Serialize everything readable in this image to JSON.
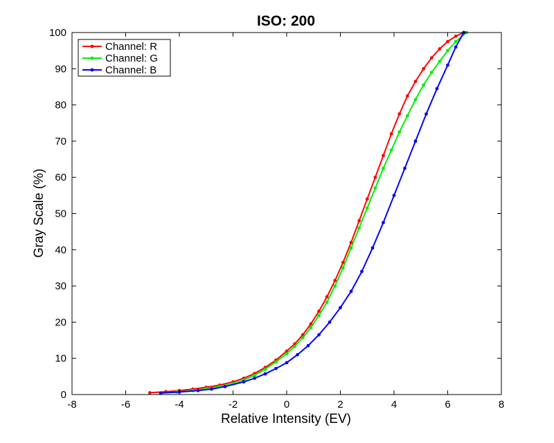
{
  "chart_data": {
    "type": "line",
    "title": "ISO: 200",
    "xlabel": "Relative Intensity (EV)",
    "ylabel": "Gray Scale (%)",
    "xlim": [
      -8,
      8
    ],
    "ylim": [
      0,
      100
    ],
    "xticks": [
      -8,
      -6,
      -4,
      -2,
      0,
      2,
      4,
      6,
      8
    ],
    "yticks": [
      0,
      10,
      20,
      30,
      40,
      50,
      60,
      70,
      80,
      90,
      100
    ],
    "grid": false,
    "legend_position": "top-left",
    "series": [
      {
        "name": "Channel: R",
        "color": "#ff0000",
        "points": [
          [
            -5.1,
            0.5
          ],
          [
            -4.5,
            0.8
          ],
          [
            -4.0,
            1.1
          ],
          [
            -3.5,
            1.5
          ],
          [
            -3.0,
            2.0
          ],
          [
            -2.5,
            2.6
          ],
          [
            -2.0,
            3.5
          ],
          [
            -1.6,
            4.5
          ],
          [
            -1.2,
            5.8
          ],
          [
            -0.8,
            7.5
          ],
          [
            -0.4,
            9.5
          ],
          [
            0.0,
            12.0
          ],
          [
            0.3,
            14.0
          ],
          [
            0.6,
            16.5
          ],
          [
            0.9,
            19.5
          ],
          [
            1.2,
            23.0
          ],
          [
            1.5,
            27.0
          ],
          [
            1.8,
            31.5
          ],
          [
            2.1,
            36.5
          ],
          [
            2.4,
            42.0
          ],
          [
            2.7,
            48.0
          ],
          [
            3.0,
            54.0
          ],
          [
            3.3,
            60.0
          ],
          [
            3.6,
            66.0
          ],
          [
            3.9,
            72.0
          ],
          [
            4.2,
            77.5
          ],
          [
            4.5,
            82.5
          ],
          [
            4.8,
            86.5
          ],
          [
            5.1,
            90.0
          ],
          [
            5.4,
            93.0
          ],
          [
            5.7,
            95.5
          ],
          [
            6.0,
            97.5
          ],
          [
            6.3,
            99.0
          ],
          [
            6.6,
            100.0
          ]
        ]
      },
      {
        "name": "Channel: G",
        "color": "#00ee00",
        "points": [
          [
            -4.7,
            0.4
          ],
          [
            -4.1,
            0.7
          ],
          [
            -3.5,
            1.1
          ],
          [
            -3.0,
            1.6
          ],
          [
            -2.5,
            2.2
          ],
          [
            -2.0,
            3.0
          ],
          [
            -1.6,
            4.0
          ],
          [
            -1.2,
            5.3
          ],
          [
            -0.8,
            7.0
          ],
          [
            -0.4,
            9.0
          ],
          [
            0.0,
            11.3
          ],
          [
            0.3,
            13.3
          ],
          [
            0.6,
            15.7
          ],
          [
            0.9,
            18.5
          ],
          [
            1.2,
            21.8
          ],
          [
            1.5,
            25.5
          ],
          [
            1.8,
            30.0
          ],
          [
            2.1,
            35.0
          ],
          [
            2.4,
            40.5
          ],
          [
            2.7,
            46.0
          ],
          [
            3.0,
            51.5
          ],
          [
            3.3,
            57.0
          ],
          [
            3.6,
            62.5
          ],
          [
            3.9,
            67.5
          ],
          [
            4.2,
            72.5
          ],
          [
            4.5,
            77.0
          ],
          [
            4.8,
            81.5
          ],
          [
            5.1,
            85.5
          ],
          [
            5.4,
            89.0
          ],
          [
            5.7,
            92.0
          ],
          [
            6.0,
            95.0
          ],
          [
            6.3,
            97.5
          ],
          [
            6.7,
            100.0
          ]
        ]
      },
      {
        "name": "Channel: B",
        "color": "#0000ff",
        "points": [
          [
            -4.7,
            0.4
          ],
          [
            -4.0,
            0.7
          ],
          [
            -3.3,
            1.1
          ],
          [
            -2.8,
            1.5
          ],
          [
            -2.3,
            2.2
          ],
          [
            -1.6,
            3.5
          ],
          [
            -1.2,
            4.5
          ],
          [
            -0.8,
            5.7
          ],
          [
            -0.4,
            7.2
          ],
          [
            0.0,
            8.8
          ],
          [
            0.4,
            11.0
          ],
          [
            0.8,
            13.5
          ],
          [
            1.2,
            16.5
          ],
          [
            1.6,
            20.0
          ],
          [
            2.0,
            24.0
          ],
          [
            2.4,
            28.5
          ],
          [
            2.8,
            34.0
          ],
          [
            3.2,
            40.5
          ],
          [
            3.6,
            47.5
          ],
          [
            4.0,
            55.0
          ],
          [
            4.4,
            62.5
          ],
          [
            4.8,
            70.0
          ],
          [
            5.2,
            77.5
          ],
          [
            5.6,
            84.5
          ],
          [
            6.0,
            91.0
          ],
          [
            6.3,
            96.0
          ],
          [
            6.6,
            100.0
          ]
        ]
      }
    ]
  }
}
